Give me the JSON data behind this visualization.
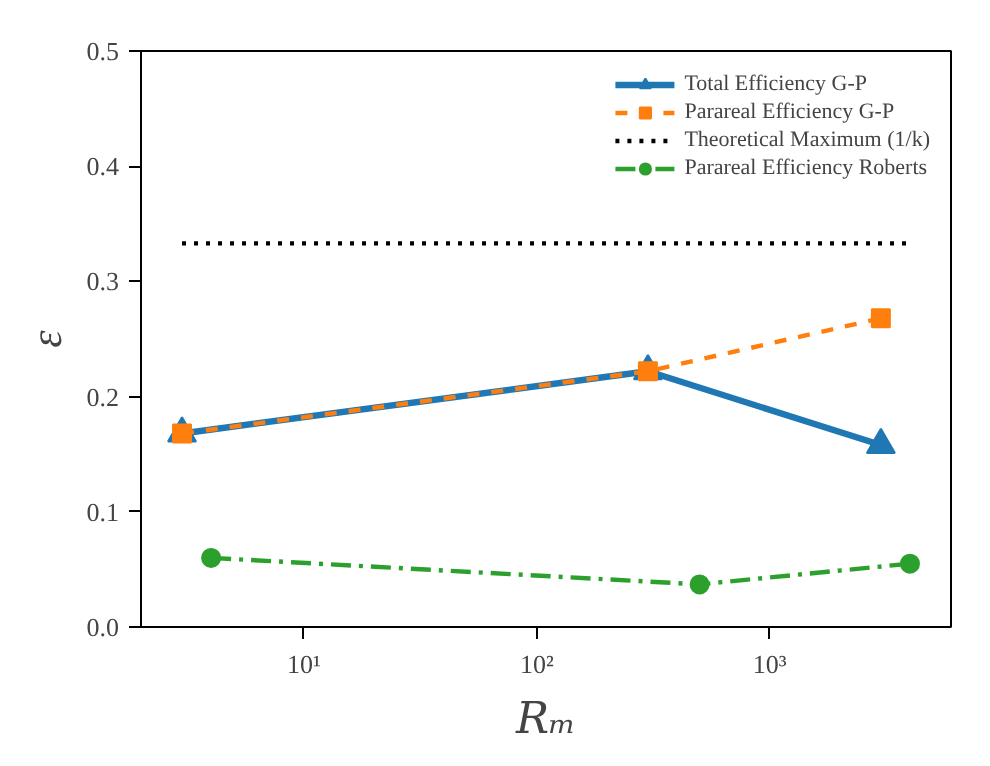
{
  "chart_data": {
    "type": "line",
    "xlabel": "Rₘ",
    "ylabel": "ε",
    "log": "x",
    "xlim": [
      2,
      6000
    ],
    "xticks": [
      {
        "value": 10,
        "label": "10¹"
      },
      {
        "value": 100,
        "label": "10²"
      },
      {
        "value": 1000,
        "label": "10³"
      }
    ],
    "ylim": [
      0,
      0.5
    ],
    "yticks": [
      {
        "value": 0,
        "label": "0.0"
      },
      0.1,
      0.2,
      0.3,
      0.4,
      0.5
    ],
    "grid": false,
    "legend": "top right",
    "series": [
      {
        "name": "Total Efficiency G-P",
        "color": "#1f77b4",
        "x": [
          3,
          300,
          3000
        ],
        "values": [
          0.168,
          0.222,
          0.158
        ],
        "marker": "triangle",
        "line_style": "solid"
      },
      {
        "name": "Parareal Efficiency G-P",
        "color": "#ff7f0e",
        "x": [
          3,
          300,
          3000
        ],
        "values": [
          0.168,
          0.222,
          0.268
        ],
        "marker": "square",
        "line_style": "dashed"
      },
      {
        "name": "Theoretical Maximum (1/k)",
        "color": "#000000",
        "x": [
          3,
          4000
        ],
        "values": [
          0.333,
          0.333
        ],
        "marker": "none",
        "line_style": "dotted"
      },
      {
        "name": "Parareal Efficiency Roberts",
        "color": "#2ca02c",
        "x": [
          4,
          500,
          4000
        ],
        "values": [
          0.06,
          0.037,
          0.055
        ],
        "marker": "circle",
        "line_style": "dashdot"
      }
    ]
  }
}
